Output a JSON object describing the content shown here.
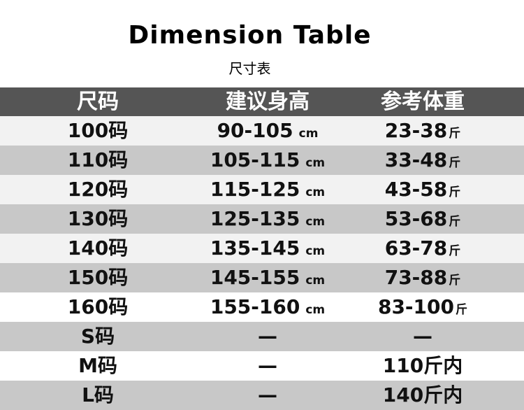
{
  "header": {
    "title": "Dimension Table",
    "subtitle": "尺寸表"
  },
  "table": {
    "columns": [
      "尺码",
      "建议身高",
      "参考体重"
    ],
    "rows": [
      {
        "size": "100码",
        "height": "90-105",
        "height_unit": "cm",
        "weight": "23-38",
        "weight_unit": "斤"
      },
      {
        "size": "110码",
        "height": "105-115",
        "height_unit": "cm",
        "weight": "33-48",
        "weight_unit": "斤"
      },
      {
        "size": "120码",
        "height": "115-125",
        "height_unit": "cm",
        "weight": "43-58",
        "weight_unit": "斤"
      },
      {
        "size": "130码",
        "height": "125-135",
        "height_unit": "cm",
        "weight": "53-68",
        "weight_unit": "斤"
      },
      {
        "size": "140码",
        "height": "135-145",
        "height_unit": "cm",
        "weight": "63-78",
        "weight_unit": "斤"
      },
      {
        "size": "150码",
        "height": "145-155",
        "height_unit": "cm",
        "weight": "73-88",
        "weight_unit": "斤"
      },
      {
        "size": "160码",
        "height": "155-160",
        "height_unit": "cm",
        "weight": "83-100",
        "weight_unit": "斤"
      },
      {
        "size": "S码",
        "height": "—",
        "weight": "—"
      },
      {
        "size": "M码",
        "height": "—",
        "weight": "110斤内"
      },
      {
        "size": "L码",
        "height": "—",
        "weight": "140斤内"
      }
    ]
  }
}
